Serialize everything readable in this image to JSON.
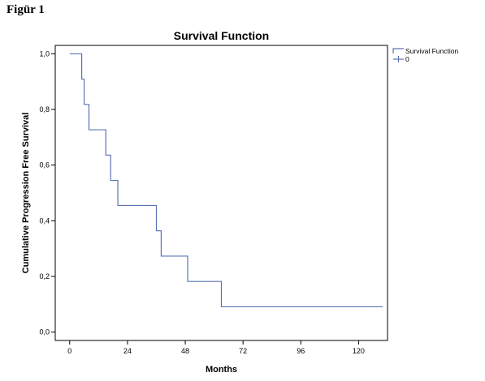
{
  "figure_label": "Figür 1",
  "chart_data": {
    "type": "line",
    "title": "Survival Function",
    "xlabel": "Months",
    "ylabel": "Cumulative Progression Free Survival",
    "xlim": [
      -6,
      132
    ],
    "ylim": [
      -0.03,
      1.03
    ],
    "xticks": [
      {
        "value": 0,
        "label": "0"
      },
      {
        "value": 24,
        "label": "24"
      },
      {
        "value": 48,
        "label": "48"
      },
      {
        "value": 72,
        "label": "72"
      },
      {
        "value": 96,
        "label": "96"
      },
      {
        "value": 120,
        "label": "120"
      }
    ],
    "yticks": [
      {
        "value": 0.0,
        "label": "0,0"
      },
      {
        "value": 0.2,
        "label": "0,2"
      },
      {
        "value": 0.4,
        "label": "0,4"
      },
      {
        "value": 0.6,
        "label": "0,6"
      },
      {
        "value": 0.8,
        "label": "0,8"
      },
      {
        "value": 1.0,
        "label": "1,0"
      }
    ],
    "grid": false,
    "legend_position": "top-right",
    "series": [
      {
        "name": "Survival Function",
        "step": true,
        "color": "#5b73b3",
        "x": [
          0,
          5,
          6,
          7,
          8,
          14,
          15,
          17,
          20,
          35,
          36,
          38,
          49,
          63,
          130
        ],
        "y": [
          1.0,
          0.909,
          0.818,
          0.818,
          0.727,
          0.727,
          0.636,
          0.545,
          0.455,
          0.455,
          0.364,
          0.273,
          0.182,
          0.091,
          0.091
        ]
      }
    ],
    "legend": [
      {
        "label": "Survival Function",
        "marker": "step"
      },
      {
        "label": "0",
        "marker": "cross"
      }
    ]
  }
}
